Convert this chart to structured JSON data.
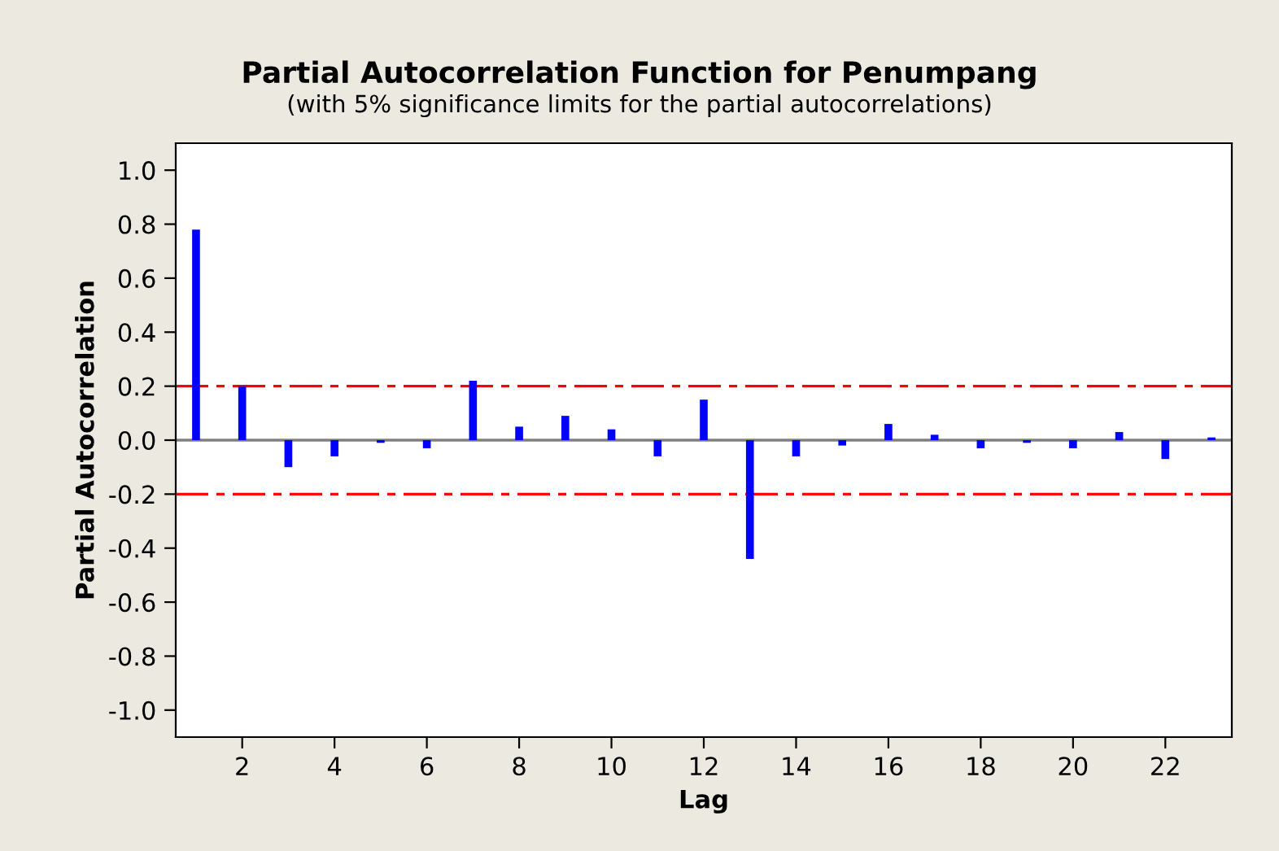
{
  "chart_data": {
    "type": "bar",
    "title": "Partial Autocorrelation Function for Penumpang",
    "subtitle": "(with 5% significance limits for the partial autocorrelations)",
    "xlabel": "Lag",
    "ylabel": "Partial Autocorrelation",
    "x": [
      1,
      2,
      3,
      4,
      5,
      6,
      7,
      8,
      9,
      10,
      11,
      12,
      13,
      14,
      15,
      16,
      17,
      18,
      19,
      20,
      21,
      22,
      23
    ],
    "values": [
      0.78,
      0.2,
      -0.1,
      -0.06,
      -0.01,
      -0.03,
      0.22,
      0.05,
      0.09,
      0.04,
      -0.06,
      0.15,
      -0.44,
      -0.06,
      -0.02,
      0.06,
      0.02,
      -0.03,
      -0.01,
      -0.03,
      0.03,
      -0.07,
      0.01
    ],
    "color": "#0000ff",
    "xlim": [
      0.56,
      23.44
    ],
    "xticks": [
      2,
      4,
      6,
      8,
      10,
      12,
      14,
      16,
      18,
      20,
      22
    ],
    "ylim": [
      -1.1,
      1.1
    ],
    "yticks": [
      {
        "value": 1.0,
        "label": "1.0"
      },
      {
        "value": 0.8,
        "label": "0.8"
      },
      {
        "value": 0.6,
        "label": "0.6"
      },
      {
        "value": 0.4,
        "label": "0.4"
      },
      {
        "value": 0.2,
        "label": "0.2"
      },
      {
        "value": 0.0,
        "label": "0.0"
      },
      {
        "value": -0.2,
        "label": "-0.2"
      },
      {
        "value": -0.4,
        "label": "-0.4"
      },
      {
        "value": -0.6,
        "label": "-0.6"
      },
      {
        "value": -0.8,
        "label": "-0.8"
      },
      {
        "value": -1.0,
        "label": "-1.0"
      }
    ],
    "ref_lines": [
      {
        "axis": "y",
        "value": 0.2,
        "color": "#ff0000",
        "line_style": "dashdot"
      },
      {
        "axis": "y",
        "value": -0.2,
        "color": "#ff0000",
        "line_style": "dashdot"
      },
      {
        "axis": "y",
        "value": 0,
        "color": "#808080",
        "line_style": "solid"
      }
    ],
    "grid": false,
    "legend": false
  }
}
